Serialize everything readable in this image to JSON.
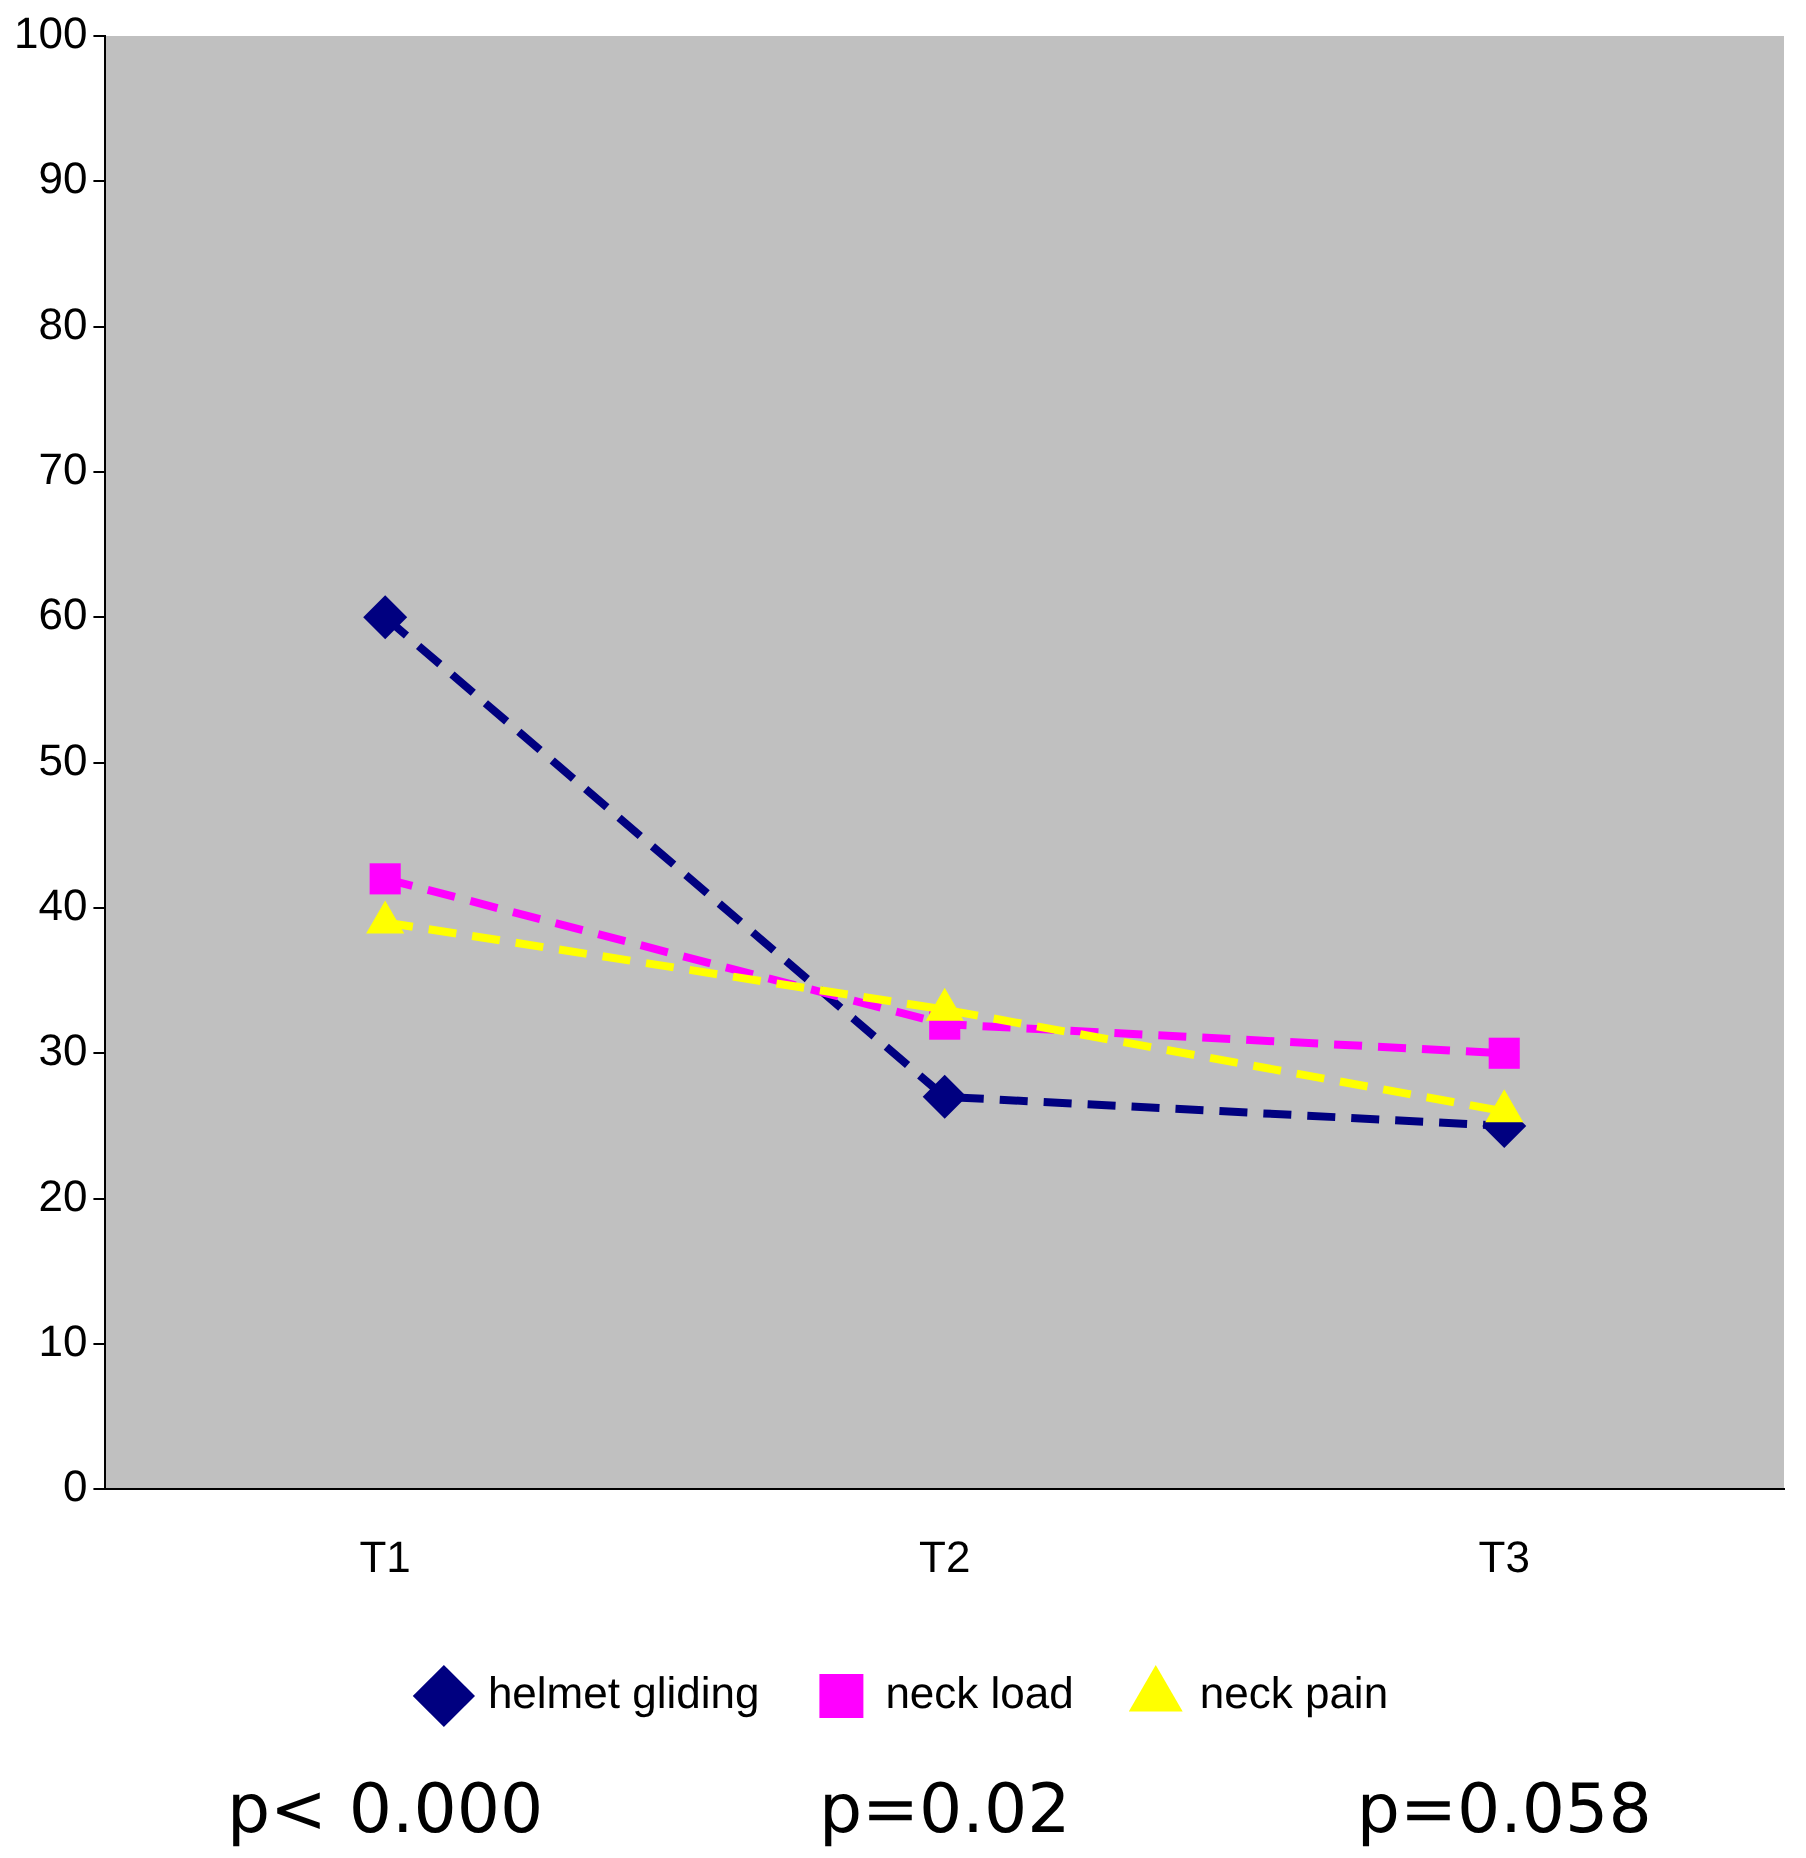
{
  "chart_data": {
    "type": "line",
    "categories": [
      "T1",
      "T2",
      "T3"
    ],
    "series": [
      {
        "name": "helmet gliding",
        "color": "#000080",
        "marker": "diamond",
        "values": [
          60,
          27,
          25
        ]
      },
      {
        "name": "neck load",
        "color": "#ff00ff",
        "marker": "square",
        "values": [
          42,
          32,
          30
        ]
      },
      {
        "name": "neck pain",
        "color": "#ffff00",
        "marker": "triangle",
        "values": [
          39,
          33,
          26
        ]
      }
    ],
    "ylim": [
      0,
      100
    ],
    "yticks": [
      0,
      10,
      20,
      30,
      40,
      50,
      60,
      70,
      80,
      90,
      100
    ],
    "grid": false,
    "legend": "bottom",
    "line_style": "dashed",
    "annotations": [
      "p< 0.000",
      "p=0.02",
      "p=0.058"
    ]
  }
}
